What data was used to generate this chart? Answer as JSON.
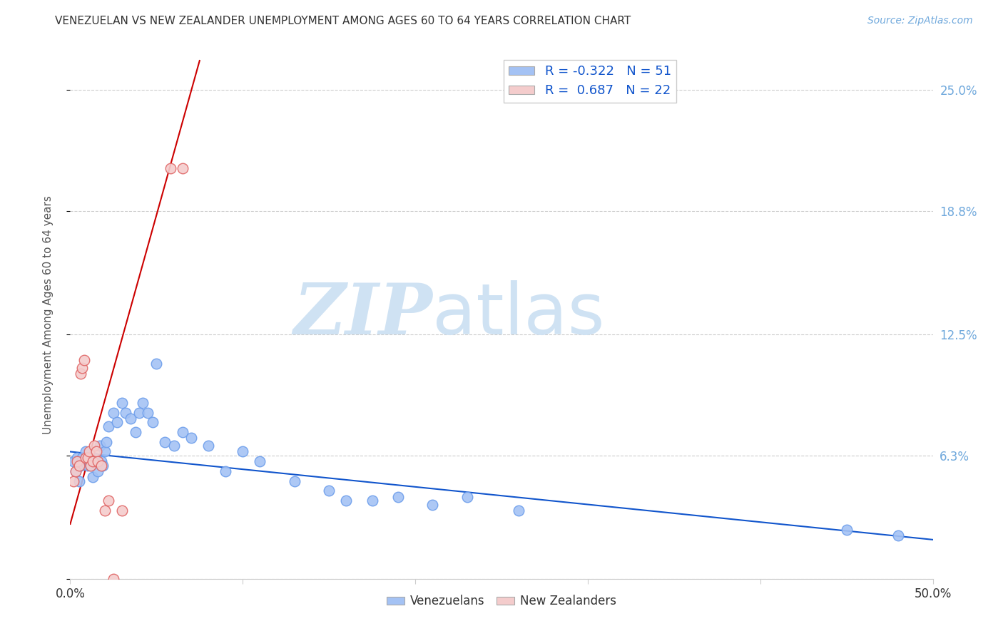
{
  "title": "VENEZUELAN VS NEW ZEALANDER UNEMPLOYMENT AMONG AGES 60 TO 64 YEARS CORRELATION CHART",
  "source": "Source: ZipAtlas.com",
  "ylabel": "Unemployment Among Ages 60 to 64 years",
  "xlim": [
    0.0,
    0.5
  ],
  "ylim": [
    0.0,
    0.27
  ],
  "ytick_positions": [
    0.0,
    0.063,
    0.125,
    0.188,
    0.25
  ],
  "yticklabels_right": [
    "",
    "6.3%",
    "12.5%",
    "18.8%",
    "25.0%"
  ],
  "blue_color": "#a4c2f4",
  "pink_color": "#f4cccc",
  "blue_scatter_edge": "#6d9eeb",
  "pink_scatter_edge": "#e06666",
  "blue_line_color": "#1155cc",
  "pink_line_color": "#cc0000",
  "legend_blue_label": "R = -0.322   N = 51",
  "legend_pink_label": "R =  0.687   N = 22",
  "watermark_zip": "ZIP",
  "watermark_atlas": "atlas",
  "watermark_color": "#cfe2f3",
  "grid_color": "#cccccc",
  "background_color": "#ffffff",
  "venezuelan_x": [
    0.002,
    0.003,
    0.004,
    0.005,
    0.006,
    0.007,
    0.008,
    0.009,
    0.01,
    0.01,
    0.011,
    0.012,
    0.013,
    0.014,
    0.015,
    0.016,
    0.017,
    0.018,
    0.019,
    0.02,
    0.021,
    0.022,
    0.025,
    0.027,
    0.03,
    0.032,
    0.035,
    0.038,
    0.04,
    0.042,
    0.045,
    0.048,
    0.05,
    0.055,
    0.06,
    0.065,
    0.07,
    0.08,
    0.09,
    0.1,
    0.11,
    0.13,
    0.15,
    0.16,
    0.175,
    0.19,
    0.21,
    0.23,
    0.26,
    0.45,
    0.48
  ],
  "venezuelan_y": [
    0.06,
    0.055,
    0.062,
    0.05,
    0.058,
    0.062,
    0.06,
    0.065,
    0.058,
    0.062,
    0.06,
    0.058,
    0.052,
    0.062,
    0.06,
    0.055,
    0.068,
    0.06,
    0.058,
    0.065,
    0.07,
    0.078,
    0.085,
    0.08,
    0.09,
    0.085,
    0.082,
    0.075,
    0.085,
    0.09,
    0.085,
    0.08,
    0.11,
    0.07,
    0.068,
    0.075,
    0.072,
    0.068,
    0.055,
    0.065,
    0.06,
    0.05,
    0.045,
    0.04,
    0.04,
    0.042,
    0.038,
    0.042,
    0.035,
    0.025,
    0.022
  ],
  "nz_x": [
    0.002,
    0.003,
    0.004,
    0.005,
    0.006,
    0.007,
    0.008,
    0.009,
    0.01,
    0.011,
    0.012,
    0.013,
    0.014,
    0.015,
    0.016,
    0.018,
    0.02,
    0.022,
    0.025,
    0.03,
    0.058,
    0.065
  ],
  "nz_y": [
    0.05,
    0.055,
    0.06,
    0.058,
    0.105,
    0.108,
    0.112,
    0.062,
    0.062,
    0.065,
    0.058,
    0.06,
    0.068,
    0.065,
    0.06,
    0.058,
    0.035,
    0.04,
    0.0,
    0.035,
    0.21,
    0.21
  ],
  "pink_line_x_start": 0.0,
  "pink_line_x_end": 0.075,
  "pink_line_y_start": 0.028,
  "pink_line_y_end": 0.265,
  "blue_line_x_start": 0.0,
  "blue_line_x_end": 0.5,
  "blue_line_y_start": 0.065,
  "blue_line_y_end": 0.02
}
